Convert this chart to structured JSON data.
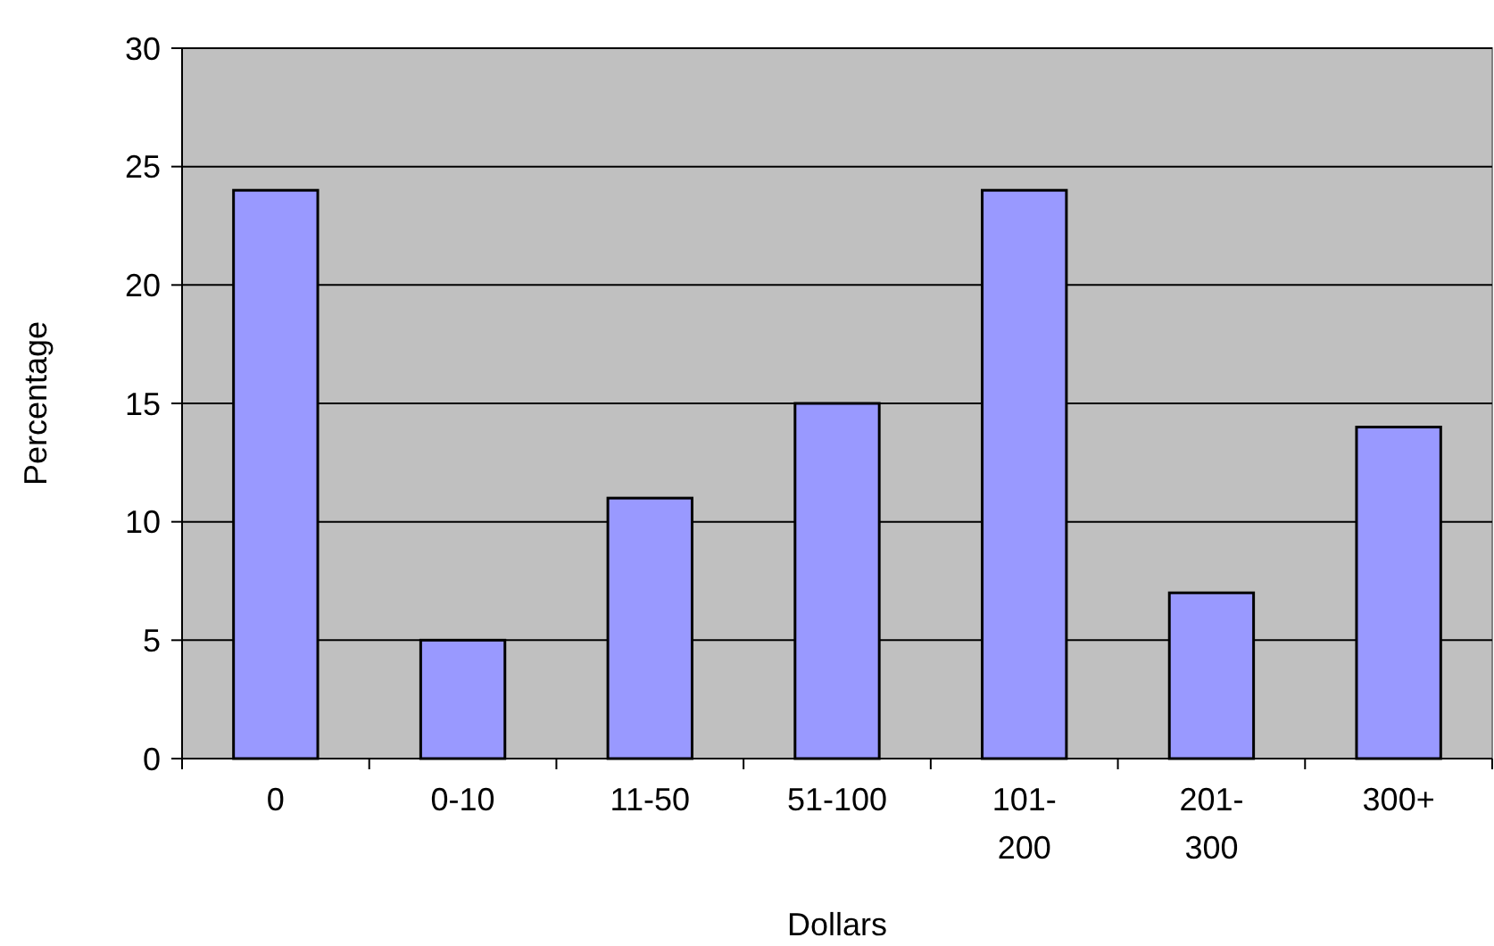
{
  "chart_data": {
    "type": "bar",
    "xlabel": "Dollars",
    "ylabel": "Percentage",
    "categories": [
      "0",
      "0-10",
      "11-50",
      "51-100",
      "101-200",
      "201-300",
      "300+"
    ],
    "values": [
      24,
      5,
      11,
      15,
      24,
      7,
      14
    ],
    "color": "#9999ff",
    "ylim": [
      0,
      30
    ],
    "yticks": [
      0,
      5,
      10,
      15,
      20,
      25,
      30
    ],
    "grid": "y"
  }
}
